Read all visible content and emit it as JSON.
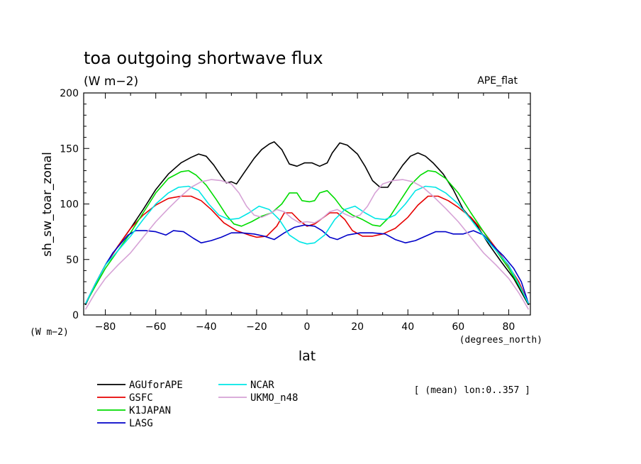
{
  "chart_data": {
    "type": "line",
    "title": "toa outgoing shortwave flux",
    "subtitle": "(W m−2)",
    "dataset_label": "APE_flat",
    "xlabel": "lat",
    "ylabel": "sh_sw_toar_zonal",
    "x_unit_label": "(degrees_north)",
    "y_unit_label": "(W m−2)",
    "mean_note": "[ (mean) lon:0..357 ]",
    "xlim": [
      -88.6,
      88.6
    ],
    "ylim": [
      0,
      200
    ],
    "xticks": [
      -80,
      -60,
      -40,
      -20,
      0,
      20,
      40,
      60,
      80
    ],
    "yticks": [
      0,
      50,
      100,
      150,
      200
    ],
    "grid": false,
    "legend_position": "bottom-left",
    "series": [
      {
        "name": "AGUforAPE",
        "color": "#000000",
        "points": [
          [
            -87.9,
            9
          ],
          [
            -84,
            28
          ],
          [
            -80,
            45
          ],
          [
            -75,
            62
          ],
          [
            -70,
            78
          ],
          [
            -65,
            95
          ],
          [
            -60,
            113
          ],
          [
            -55,
            127
          ],
          [
            -50,
            137
          ],
          [
            -46,
            142
          ],
          [
            -43,
            145
          ],
          [
            -40,
            143
          ],
          [
            -37,
            135
          ],
          [
            -34,
            125
          ],
          [
            -32,
            119
          ],
          [
            -30,
            120
          ],
          [
            -28,
            118
          ],
          [
            -25,
            128
          ],
          [
            -21,
            141
          ],
          [
            -18,
            149
          ],
          [
            -15,
            154
          ],
          [
            -13,
            156
          ],
          [
            -10,
            149
          ],
          [
            -7,
            136
          ],
          [
            -4,
            134
          ],
          [
            -1,
            137
          ],
          [
            2,
            137
          ],
          [
            5,
            134
          ],
          [
            8,
            137
          ],
          [
            10,
            146
          ],
          [
            13,
            155
          ],
          [
            16,
            153
          ],
          [
            20,
            145
          ],
          [
            23,
            134
          ],
          [
            26,
            121
          ],
          [
            29,
            115
          ],
          [
            32,
            115
          ],
          [
            35,
            125
          ],
          [
            38,
            135
          ],
          [
            41,
            143
          ],
          [
            44,
            146
          ],
          [
            47,
            143
          ],
          [
            50,
            137
          ],
          [
            54,
            127
          ],
          [
            58,
            113
          ],
          [
            62,
            95
          ],
          [
            67,
            82
          ],
          [
            72,
            64
          ],
          [
            77,
            48
          ],
          [
            82,
            33
          ],
          [
            87.9,
            9
          ]
        ]
      },
      {
        "name": "GSFC",
        "color": "#e60000",
        "points": [
          [
            -87.9,
            10
          ],
          [
            -84,
            28
          ],
          [
            -80,
            45
          ],
          [
            -75,
            62
          ],
          [
            -70,
            78
          ],
          [
            -65,
            90
          ],
          [
            -60,
            99
          ],
          [
            -55,
            105
          ],
          [
            -50,
            107
          ],
          [
            -46,
            107
          ],
          [
            -42,
            103
          ],
          [
            -38,
            95
          ],
          [
            -33,
            83
          ],
          [
            -28,
            76
          ],
          [
            -23,
            72
          ],
          [
            -20,
            70
          ],
          [
            -16,
            71
          ],
          [
            -12,
            80
          ],
          [
            -9,
            92
          ],
          [
            -6,
            92
          ],
          [
            -3,
            85
          ],
          [
            0,
            80
          ],
          [
            3,
            82
          ],
          [
            6,
            87
          ],
          [
            9,
            92
          ],
          [
            12,
            92
          ],
          [
            15,
            86
          ],
          [
            18,
            76
          ],
          [
            22,
            71
          ],
          [
            26,
            71
          ],
          [
            30,
            73
          ],
          [
            35,
            78
          ],
          [
            40,
            88
          ],
          [
            44,
            99
          ],
          [
            48,
            107
          ],
          [
            52,
            107
          ],
          [
            56,
            103
          ],
          [
            60,
            97
          ],
          [
            65,
            88
          ],
          [
            70,
            75
          ],
          [
            75,
            60
          ],
          [
            80,
            44
          ],
          [
            84,
            30
          ],
          [
            87.9,
            10
          ]
        ]
      },
      {
        "name": "K1JAPAN",
        "color": "#00dc00",
        "points": [
          [
            -87.9,
            10
          ],
          [
            -84,
            26
          ],
          [
            -80,
            42
          ],
          [
            -75,
            58
          ],
          [
            -70,
            74
          ],
          [
            -65,
            92
          ],
          [
            -60,
            110
          ],
          [
            -55,
            123
          ],
          [
            -50,
            129
          ],
          [
            -47,
            130
          ],
          [
            -44,
            126
          ],
          [
            -40,
            117
          ],
          [
            -36,
            104
          ],
          [
            -32,
            90
          ],
          [
            -29,
            82
          ],
          [
            -26,
            80
          ],
          [
            -22,
            84
          ],
          [
            -18,
            89
          ],
          [
            -14,
            92
          ],
          [
            -10,
            100
          ],
          [
            -7,
            110
          ],
          [
            -4,
            110
          ],
          [
            -2,
            103
          ],
          [
            1,
            102
          ],
          [
            3,
            103
          ],
          [
            5,
            110
          ],
          [
            8,
            112
          ],
          [
            11,
            105
          ],
          [
            14,
            96
          ],
          [
            18,
            90
          ],
          [
            22,
            86
          ],
          [
            26,
            81
          ],
          [
            29,
            80
          ],
          [
            33,
            89
          ],
          [
            37,
            103
          ],
          [
            41,
            117
          ],
          [
            45,
            126
          ],
          [
            48,
            130
          ],
          [
            51,
            129
          ],
          [
            55,
            123
          ],
          [
            60,
            110
          ],
          [
            65,
            92
          ],
          [
            70,
            75
          ],
          [
            75,
            58
          ],
          [
            80,
            42
          ],
          [
            84,
            27
          ],
          [
            87.9,
            10
          ]
        ]
      },
      {
        "name": "LASG",
        "color": "#0000c8",
        "points": [
          [
            -87.9,
            10
          ],
          [
            -84,
            28
          ],
          [
            -80,
            45
          ],
          [
            -77,
            56
          ],
          [
            -74,
            64
          ],
          [
            -71,
            72
          ],
          [
            -68,
            76
          ],
          [
            -64,
            76
          ],
          [
            -60,
            75
          ],
          [
            -56,
            72
          ],
          [
            -53,
            76
          ],
          [
            -49,
            75
          ],
          [
            -45,
            69
          ],
          [
            -42,
            65
          ],
          [
            -38,
            67
          ],
          [
            -34,
            70
          ],
          [
            -30,
            74
          ],
          [
            -26,
            74
          ],
          [
            -21,
            73
          ],
          [
            -17,
            71
          ],
          [
            -13,
            68
          ],
          [
            -9,
            74
          ],
          [
            -5,
            79
          ],
          [
            -1,
            81
          ],
          [
            3,
            80
          ],
          [
            6,
            76
          ],
          [
            9,
            70
          ],
          [
            12,
            68
          ],
          [
            16,
            72
          ],
          [
            21,
            74
          ],
          [
            26,
            74
          ],
          [
            31,
            73
          ],
          [
            35,
            68
          ],
          [
            39,
            65
          ],
          [
            43,
            67
          ],
          [
            47,
            71
          ],
          [
            51,
            75
          ],
          [
            55,
            75
          ],
          [
            58,
            73
          ],
          [
            62,
            73
          ],
          [
            66,
            76
          ],
          [
            70,
            72
          ],
          [
            74,
            62
          ],
          [
            78,
            53
          ],
          [
            82,
            42
          ],
          [
            85,
            30
          ],
          [
            87.9,
            10
          ]
        ]
      },
      {
        "name": "NCAR",
        "color": "#00e6e6",
        "points": [
          [
            -87.9,
            10
          ],
          [
            -84,
            28
          ],
          [
            -80,
            45
          ],
          [
            -75,
            58
          ],
          [
            -70,
            71
          ],
          [
            -65,
            86
          ],
          [
            -60,
            100
          ],
          [
            -55,
            110
          ],
          [
            -51,
            115
          ],
          [
            -47,
            116
          ],
          [
            -43,
            112
          ],
          [
            -39,
            100
          ],
          [
            -35,
            90
          ],
          [
            -31,
            86
          ],
          [
            -27,
            87
          ],
          [
            -23,
            92
          ],
          [
            -19,
            98
          ],
          [
            -15,
            95
          ],
          [
            -11,
            86
          ],
          [
            -7,
            72
          ],
          [
            -3,
            66
          ],
          [
            0,
            64
          ],
          [
            3,
            65
          ],
          [
            7,
            72
          ],
          [
            11,
            86
          ],
          [
            15,
            95
          ],
          [
            19,
            98
          ],
          [
            23,
            92
          ],
          [
            27,
            87
          ],
          [
            31,
            86
          ],
          [
            35,
            90
          ],
          [
            39,
            100
          ],
          [
            43,
            112
          ],
          [
            47,
            116
          ],
          [
            51,
            115
          ],
          [
            55,
            110
          ],
          [
            60,
            100
          ],
          [
            65,
            86
          ],
          [
            70,
            71
          ],
          [
            75,
            58
          ],
          [
            80,
            45
          ],
          [
            84,
            28
          ],
          [
            87.9,
            10
          ]
        ]
      },
      {
        "name": "UKMO_n48",
        "color": "#d6a2d6",
        "points": [
          [
            -87.9,
            5
          ],
          [
            -84,
            20
          ],
          [
            -80,
            33
          ],
          [
            -75,
            45
          ],
          [
            -70,
            56
          ],
          [
            -65,
            70
          ],
          [
            -60,
            84
          ],
          [
            -55,
            96
          ],
          [
            -50,
            107
          ],
          [
            -46,
            115
          ],
          [
            -42,
            120
          ],
          [
            -38,
            122
          ],
          [
            -34,
            121
          ],
          [
            -30,
            118
          ],
          [
            -27,
            110
          ],
          [
            -24,
            98
          ],
          [
            -21,
            90
          ],
          [
            -18,
            88
          ],
          [
            -15,
            91
          ],
          [
            -12,
            95
          ],
          [
            -9,
            93
          ],
          [
            -6,
            87
          ],
          [
            -3,
            83
          ],
          [
            0,
            84
          ],
          [
            3,
            83
          ],
          [
            6,
            87
          ],
          [
            9,
            93
          ],
          [
            12,
            95
          ],
          [
            15,
            91
          ],
          [
            18,
            88
          ],
          [
            21,
            90
          ],
          [
            24,
            98
          ],
          [
            27,
            110
          ],
          [
            30,
            118
          ],
          [
            34,
            121
          ],
          [
            38,
            122
          ],
          [
            42,
            120
          ],
          [
            46,
            115
          ],
          [
            50,
            107
          ],
          [
            55,
            96
          ],
          [
            60,
            84
          ],
          [
            65,
            70
          ],
          [
            70,
            56
          ],
          [
            75,
            45
          ],
          [
            80,
            33
          ],
          [
            84,
            20
          ],
          [
            87.9,
            5
          ]
        ]
      }
    ]
  }
}
